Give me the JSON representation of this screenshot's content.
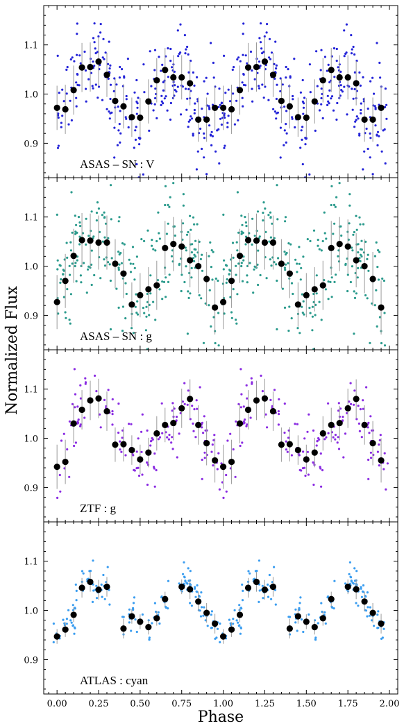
{
  "figure": {
    "ylabel": "Normalized Flux",
    "xlabel": "Phase"
  },
  "chart_data": [
    {
      "type": "scatter",
      "label": "ASAS – SN : V",
      "point_color": "#2424d8",
      "x_ticks": [
        "0.00",
        "0.25",
        "0.50",
        "0.75",
        "1.00",
        "1.25",
        "1.50",
        "1.75",
        "2.00"
      ],
      "y_ticks": [
        "0.9",
        "1.0",
        "1.1"
      ],
      "xlim": [
        -0.08,
        2.05
      ],
      "ylim": [
        0.83,
        1.18
      ],
      "binned": {
        "x": [
          0.0,
          0.05,
          0.1,
          0.15,
          0.2,
          0.25,
          0.3,
          0.35,
          0.4,
          0.45,
          0.5,
          0.55,
          0.6,
          0.65,
          0.7,
          0.75,
          0.8,
          0.85,
          0.9,
          0.95
        ],
        "y": [
          0.972,
          0.969,
          1.008,
          1.054,
          1.055,
          1.066,
          1.039,
          0.986,
          0.975,
          0.953,
          0.952,
          0.985,
          1.028,
          1.049,
          1.034,
          1.034,
          1.022,
          0.948,
          0.948,
          0.972
        ],
        "err": [
          0.045,
          0.05,
          0.05,
          0.05,
          0.05,
          0.05,
          0.045,
          0.045,
          0.045,
          0.04,
          0.04,
          0.045,
          0.045,
          0.045,
          0.045,
          0.045,
          0.045,
          0.045,
          0.045,
          0.045
        ]
      },
      "scatter_spread": 0.05
    },
    {
      "type": "scatter",
      "label": "ASAS – SN : g",
      "point_color": "#2a9a8c",
      "x_ticks": [
        "0.00",
        "0.25",
        "0.50",
        "0.75",
        "1.00",
        "1.25",
        "1.50",
        "1.75",
        "2.00"
      ],
      "y_ticks": [
        "0.9",
        "1.0",
        "1.1"
      ],
      "xlim": [
        -0.08,
        2.05
      ],
      "ylim": [
        0.83,
        1.18
      ],
      "binned": {
        "x": [
          0.0,
          0.05,
          0.1,
          0.15,
          0.2,
          0.25,
          0.3,
          0.35,
          0.4,
          0.45,
          0.5,
          0.55,
          0.6,
          0.65,
          0.7,
          0.75,
          0.8,
          0.85,
          0.9,
          0.95
        ],
        "y": [
          0.927,
          0.97,
          1.021,
          1.053,
          1.052,
          1.048,
          1.048,
          1.005,
          0.985,
          0.922,
          0.941,
          0.953,
          0.961,
          1.037,
          1.045,
          1.04,
          1.012,
          1.0,
          0.974,
          0.916
        ],
        "err": [
          0.055,
          0.055,
          0.055,
          0.055,
          0.055,
          0.055,
          0.055,
          0.05,
          0.05,
          0.045,
          0.045,
          0.045,
          0.05,
          0.055,
          0.055,
          0.055,
          0.055,
          0.055,
          0.055,
          0.055
        ]
      },
      "scatter_spread": 0.065
    },
    {
      "type": "scatter",
      "label": "ZTF : g",
      "point_color": "#8a2be2",
      "x_ticks": [
        "0.00",
        "0.25",
        "0.50",
        "0.75",
        "1.00",
        "1.25",
        "1.50",
        "1.75",
        "2.00"
      ],
      "y_ticks": [
        "0.9",
        "1.0",
        "1.1"
      ],
      "xlim": [
        -0.08,
        2.05
      ],
      "ylim": [
        0.83,
        1.18
      ],
      "binned": {
        "x": [
          0.0,
          0.05,
          0.1,
          0.15,
          0.2,
          0.25,
          0.3,
          0.35,
          0.4,
          0.45,
          0.5,
          0.55,
          0.6,
          0.65,
          0.7,
          0.75,
          0.8,
          0.85,
          0.9,
          0.95
        ],
        "y": [
          0.942,
          0.952,
          1.03,
          1.058,
          1.077,
          1.081,
          1.055,
          0.987,
          0.988,
          0.976,
          0.957,
          0.971,
          1.01,
          1.027,
          1.031,
          1.061,
          1.08,
          1.027,
          0.99,
          0.955
        ],
        "err": [
          0.045,
          0.045,
          0.04,
          0.04,
          0.04,
          0.04,
          0.04,
          0.035,
          0.035,
          0.03,
          0.03,
          0.03,
          0.035,
          0.035,
          0.035,
          0.04,
          0.04,
          0.04,
          0.045,
          0.045
        ]
      },
      "scatter_spread": 0.035
    },
    {
      "type": "scatter",
      "label": "ATLAS : cyan",
      "point_color": "#3a9df0",
      "x_ticks": [
        "0.00",
        "0.25",
        "0.50",
        "0.75",
        "1.00",
        "1.25",
        "1.50",
        "1.75",
        "2.00"
      ],
      "y_ticks": [
        "0.9",
        "1.0",
        "1.1"
      ],
      "xlim": [
        -0.08,
        2.05
      ],
      "ylim": [
        0.83,
        1.18
      ],
      "binned": {
        "x": [
          0.0,
          0.05,
          0.1,
          0.15,
          0.2,
          0.25,
          0.3,
          0.4,
          0.45,
          0.5,
          0.55,
          0.6,
          0.65,
          0.75,
          0.8,
          0.85,
          0.9,
          0.95
        ],
        "y": [
          0.947,
          0.961,
          0.991,
          1.046,
          1.058,
          1.042,
          1.048,
          0.963,
          0.988,
          0.977,
          0.966,
          0.984,
          1.023,
          1.048,
          1.043,
          1.018,
          0.995,
          0.973
        ],
        "err": [
          0.015,
          0.015,
          0.015,
          0.02,
          0.02,
          0.02,
          0.02,
          0.02,
          0.015,
          0.015,
          0.015,
          0.015,
          0.015,
          0.015,
          0.02,
          0.02,
          0.02,
          0.02
        ]
      },
      "scatter_spread": 0.02
    }
  ]
}
